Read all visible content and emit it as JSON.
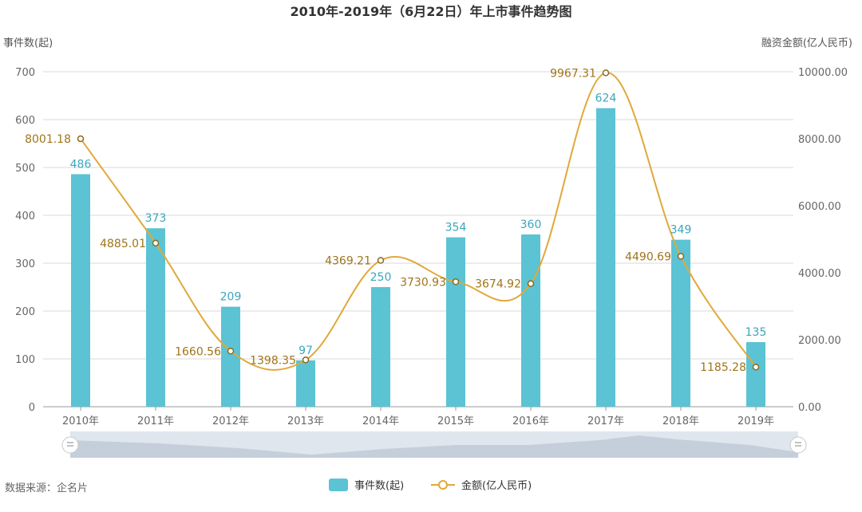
{
  "chart_data": {
    "type": "bar+line",
    "title": "2010年-2019年（6月22日）年上市事件趋势图",
    "categories": [
      "2010年",
      "2011年",
      "2012年",
      "2013年",
      "2014年",
      "2015年",
      "2016年",
      "2017年",
      "2018年",
      "2019年"
    ],
    "left_axis": {
      "name": "事件数(起)",
      "min": 0,
      "max": 700,
      "ticks": [
        "0",
        "100",
        "200",
        "300",
        "400",
        "500",
        "600",
        "700"
      ]
    },
    "right_axis": {
      "name": "融资金额(亿人民币)",
      "min": 0,
      "max": 10000,
      "ticks": [
        "0.00",
        "2000.00",
        "4000.00",
        "6000.00",
        "8000.00",
        "10000.00"
      ]
    },
    "series": [
      {
        "name": "事件数(起)",
        "type": "bar",
        "axis": "left",
        "values": [
          486,
          373,
          209,
          97,
          250,
          354,
          360,
          624,
          349,
          135
        ],
        "labels": [
          "486",
          "373",
          "209",
          "97",
          "250",
          "354",
          "360",
          "624",
          "349",
          "135"
        ]
      },
      {
        "name": "金额(亿人民币)",
        "type": "line",
        "axis": "right",
        "values": [
          8001.18,
          4885.01,
          1660.56,
          1398.35,
          4369.21,
          3730.93,
          3674.92,
          9967.31,
          4490.69,
          1185.28
        ],
        "labels": [
          "8001.18",
          "4885.01",
          "1660.56",
          "1398.35",
          "4369.21",
          "3730.93",
          "3674.92",
          "9967.31",
          "4490.69",
          "1185.28"
        ]
      }
    ],
    "legend": {
      "position": "bottom-center",
      "items": [
        "事件数(起)",
        "金额(亿人民币)"
      ]
    },
    "colors": {
      "bar": "#5bc3d3",
      "line": "#e0a939",
      "bar_label": "#3ba6bd",
      "line_label": "#a0741a"
    }
  },
  "source_text": "数据来源：企名片"
}
